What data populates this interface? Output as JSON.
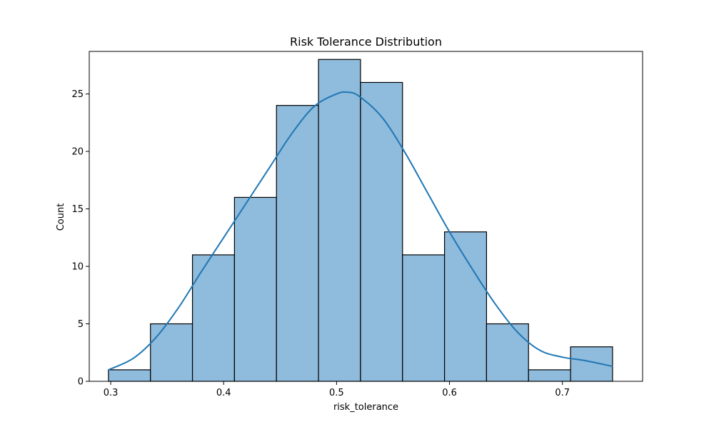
{
  "chart_data": {
    "type": "bar",
    "title": "Risk Tolerance Distribution",
    "xlabel": "risk_tolerance",
    "ylabel": "Count",
    "xlim": [
      0.281,
      0.771
    ],
    "ylim": [
      0,
      28.7
    ],
    "xticks": [
      0.3,
      0.4,
      0.5,
      0.6,
      0.7
    ],
    "xtick_labels": [
      "0.3",
      "0.4",
      "0.5",
      "0.6",
      "0.7"
    ],
    "yticks": [
      0,
      5,
      10,
      15,
      20,
      25
    ],
    "ytick_labels": [
      "0",
      "5",
      "10",
      "15",
      "20",
      "25"
    ],
    "bin_edges": [
      0.298,
      0.3352,
      0.3724,
      0.4096,
      0.4468,
      0.484,
      0.5212,
      0.5584,
      0.5956,
      0.6328,
      0.67,
      0.7072,
      0.7444
    ],
    "counts": [
      1,
      5,
      11,
      16,
      24,
      28,
      26,
      11,
      13,
      5,
      1,
      3
    ],
    "bar_color": "#8fbbdc",
    "kde_color": "#1f77b4",
    "kde": {
      "x": [
        0.298,
        0.32,
        0.34,
        0.36,
        0.38,
        0.4,
        0.42,
        0.44,
        0.46,
        0.48,
        0.5,
        0.51,
        0.52,
        0.54,
        0.56,
        0.58,
        0.6,
        0.62,
        0.64,
        0.66,
        0.68,
        0.7,
        0.72,
        0.7444
      ],
      "y": [
        1.0,
        2.0,
        3.8,
        6.4,
        9.5,
        12.5,
        15.5,
        18.5,
        21.5,
        23.9,
        25.0,
        25.15,
        24.8,
        23.0,
        20.0,
        16.5,
        13.0,
        9.8,
        6.8,
        4.3,
        2.7,
        2.1,
        1.8,
        1.3
      ]
    },
    "grid": false,
    "legend": "none"
  }
}
